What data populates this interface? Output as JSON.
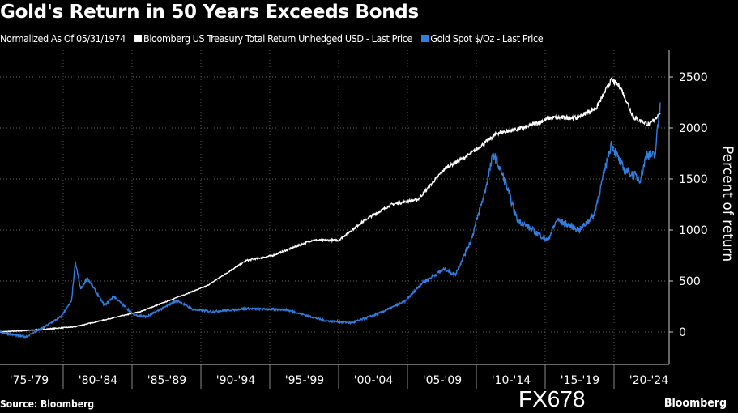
{
  "chart_data": {
    "type": "line",
    "title": "Gold's Return in 50 Years Exceeds Bonds",
    "subtitle": "Normalized As Of 05/31/1974",
    "ylabel": "Percent of return",
    "ylim": [
      -250,
      2700
    ],
    "yticks": [
      0,
      500,
      1000,
      1500,
      2000,
      2500
    ],
    "xlim": [
      1974.4,
      2024.3
    ],
    "xtick_labels": [
      "'75-'79",
      "'80-'84",
      "'85-'89",
      "'90-'94",
      "'95-'99",
      "'00-'04",
      "'05-'09",
      "'10-'14",
      "'15-'19",
      "'20-'24"
    ],
    "grid": true,
    "legend_placement": "top",
    "series": [
      {
        "name": "Bloomberg US Treasury Total Return Unhedged USD - Last Price",
        "color": "#ffffff",
        "points": [
          [
            1974.4,
            0
          ],
          [
            1977,
            20
          ],
          [
            1980,
            50
          ],
          [
            1982,
            110
          ],
          [
            1985,
            200
          ],
          [
            1987,
            300
          ],
          [
            1990,
            450
          ],
          [
            1993,
            700
          ],
          [
            1995,
            750
          ],
          [
            1998,
            900
          ],
          [
            2000,
            900
          ],
          [
            2002,
            1100
          ],
          [
            2004,
            1250
          ],
          [
            2006,
            1300
          ],
          [
            2008,
            1600
          ],
          [
            2010,
            1750
          ],
          [
            2012,
            1950
          ],
          [
            2014,
            2000
          ],
          [
            2016,
            2100
          ],
          [
            2018,
            2100
          ],
          [
            2019.5,
            2200
          ],
          [
            2020.6,
            2470
          ],
          [
            2021.3,
            2400
          ],
          [
            2022.3,
            2100
          ],
          [
            2023.5,
            2030
          ],
          [
            2024.3,
            2150
          ]
        ]
      },
      {
        "name": "Gold Spot $/Oz - Last Price",
        "color": "#2f7ee0",
        "points": [
          [
            1974.4,
            0
          ],
          [
            1976.3,
            -50
          ],
          [
            1977.5,
            30
          ],
          [
            1979,
            150
          ],
          [
            1979.8,
            300
          ],
          [
            1980.1,
            680
          ],
          [
            1980.5,
            420
          ],
          [
            1981,
            530
          ],
          [
            1982.3,
            260
          ],
          [
            1983,
            350
          ],
          [
            1984.5,
            170
          ],
          [
            1985.5,
            150
          ],
          [
            1987.8,
            310
          ],
          [
            1989,
            220
          ],
          [
            1990.5,
            200
          ],
          [
            1993,
            230
          ],
          [
            1996,
            220
          ],
          [
            1999,
            110
          ],
          [
            2001,
            90
          ],
          [
            2003,
            180
          ],
          [
            2005,
            300
          ],
          [
            2006.3,
            480
          ],
          [
            2008,
            620
          ],
          [
            2008.8,
            560
          ],
          [
            2010,
            900
          ],
          [
            2011,
            1350
          ],
          [
            2011.7,
            1750
          ],
          [
            2012.5,
            1500
          ],
          [
            2013.5,
            1100
          ],
          [
            2015.8,
            900
          ],
          [
            2016.5,
            1100
          ],
          [
            2018.2,
            1000
          ],
          [
            2019.3,
            1150
          ],
          [
            2020.6,
            1850
          ],
          [
            2021.5,
            1600
          ],
          [
            2022.8,
            1500
          ],
          [
            2023.3,
            1750
          ],
          [
            2023.9,
            1720
          ],
          [
            2024.3,
            2250
          ]
        ]
      }
    ]
  },
  "source": "Source: Bloomberg",
  "brand": "Bloomberg",
  "watermark": "FX678"
}
